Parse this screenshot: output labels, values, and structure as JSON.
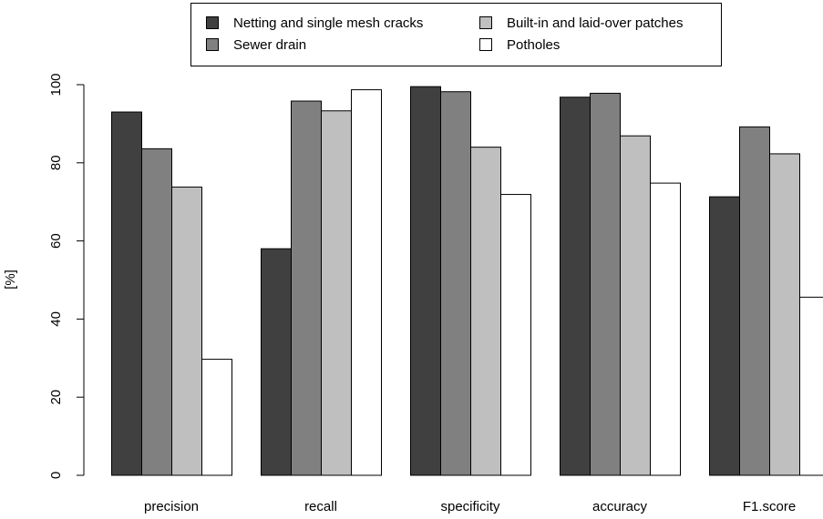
{
  "chart_data": {
    "type": "bar",
    "categories": [
      "precision",
      "recall",
      "specificity",
      "accuracy",
      "F1.score"
    ],
    "series": [
      {
        "name": "Netting and single mesh cracks",
        "color": "#404040",
        "values": [
          93,
          58,
          99.5,
          96.8,
          71.3
        ]
      },
      {
        "name": "Sewer drain",
        "color": "#808080",
        "values": [
          83.6,
          95.8,
          98.2,
          97.8,
          89.2
        ]
      },
      {
        "name": "Built-in and laid-over patches",
        "color": "#bfbfbf",
        "values": [
          73.8,
          93.3,
          84,
          86.9,
          82.3
        ]
      },
      {
        "name": "Potholes",
        "color": "#ffffff",
        "values": [
          29.7,
          98.7,
          71.9,
          74.8,
          45.6
        ]
      }
    ],
    "title": "",
    "xlabel": "",
    "ylabel": "[%]",
    "ylim": [
      0,
      100
    ],
    "yticks": [
      0,
      20,
      40,
      60,
      80,
      100
    ],
    "grid": false,
    "legend_position": "top"
  }
}
